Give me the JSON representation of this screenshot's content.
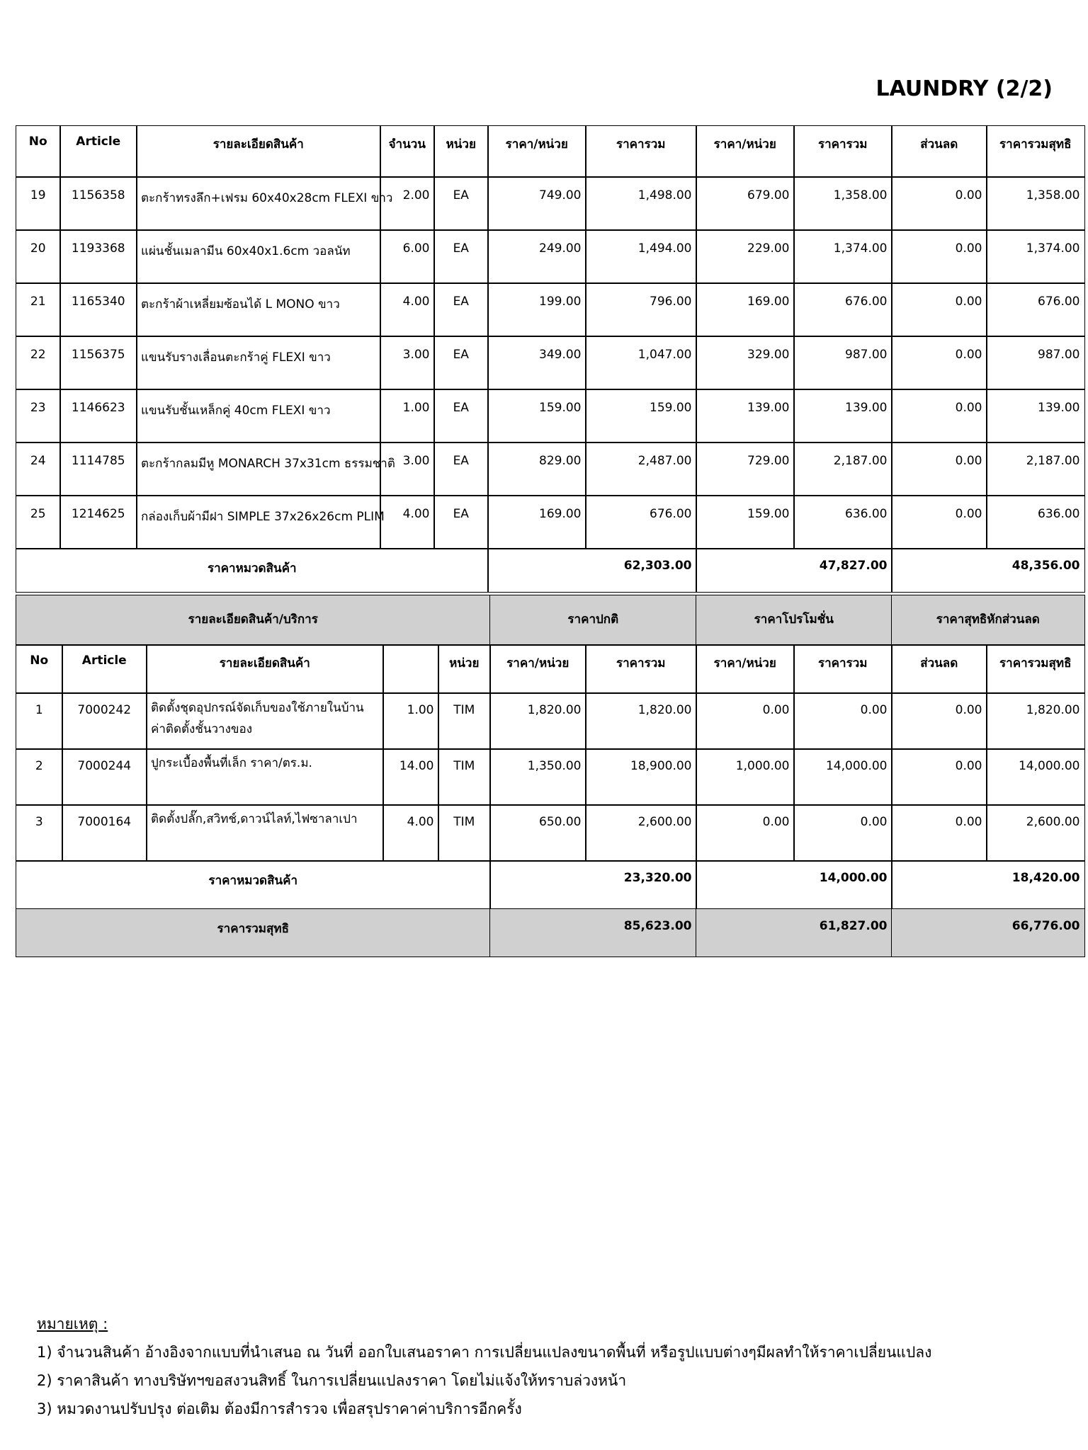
{
  "header": {
    "title": "LAUNDRY (2/2)"
  },
  "products": {
    "columns": [
      "No",
      "Article",
      "รายละเอียดสินค้า",
      "จำนวน",
      "หน่วย",
      "ราคา/หน่วย",
      "ราคารวม",
      "ราคา/หน่วย",
      "ราคารวม",
      "ส่วนลด",
      "ราคารวมสุทธิ"
    ],
    "rows": [
      [
        "19",
        "1156358",
        "ตะกร้าทรงลึก+เฟรม 60x40x28cm FLEXI ขาว",
        "2.00",
        "EA",
        "749.00",
        "1,498.00",
        "679.00",
        "1,358.00",
        "0.00",
        "1,358.00"
      ],
      [
        "20",
        "1193368",
        "แผ่นชั้นเมลามีน 60x40x1.6cm วอลนัท",
        "6.00",
        "EA",
        "249.00",
        "1,494.00",
        "229.00",
        "1,374.00",
        "0.00",
        "1,374.00"
      ],
      [
        "21",
        "1165340",
        "ตะกร้าผ้าเหลี่ยมซ้อนได้ L MONO ขาว",
        "4.00",
        "EA",
        "199.00",
        "796.00",
        "169.00",
        "676.00",
        "0.00",
        "676.00"
      ],
      [
        "22",
        "1156375",
        "แขนรับรางเลื่อนตะกร้าคู่ FLEXI ขาว",
        "3.00",
        "EA",
        "349.00",
        "1,047.00",
        "329.00",
        "987.00",
        "0.00",
        "987.00"
      ],
      [
        "23",
        "1146623",
        "แขนรับชั้นเหล็กคู่ 40cm FLEXI ขาว",
        "1.00",
        "EA",
        "159.00",
        "159.00",
        "139.00",
        "139.00",
        "0.00",
        "139.00"
      ],
      [
        "24",
        "1114785",
        "ตะกร้ากลมมีหู MONARCH 37x31cm ธรรมชาติ",
        "3.00",
        "EA",
        "829.00",
        "2,487.00",
        "729.00",
        "2,187.00",
        "0.00",
        "2,187.00"
      ],
      [
        "25",
        "1214625",
        "กล่องเก็บผ้ามีฝา SIMPLE 37x26x26cm PLIM",
        "4.00",
        "EA",
        "169.00",
        "676.00",
        "159.00",
        "636.00",
        "0.00",
        "636.00"
      ]
    ],
    "subtotal": {
      "label": "ราคาหมวดสินค้า",
      "values": [
        "62,303.00",
        "47,827.00",
        "48,356.00"
      ]
    }
  },
  "services": {
    "groups": [
      "รายละเอียดสินค้า/บริการ",
      "ราคาปกติ",
      "ราคาโปรโมชั่น",
      "ราคาสุทธิหักส่วนลด"
    ],
    "columns": [
      "No",
      "Article",
      "รายละเอียดสินค้า",
      null,
      "หน่วย",
      "ราคา/หน่วย",
      "ราคารวม",
      "ราคา/หน่วย",
      "ราคารวม",
      "ส่วนลด",
      "ราคารวมสุทธิ"
    ],
    "rows": [
      [
        "1",
        "7000242",
        [
          "ติดตั้งชุดอุปกรณ์จัดเก็บของใช้ภายในบ้าน",
          "ค่าติดตั้งชั้นวางของ"
        ],
        "1.00",
        "TIM",
        "1,820.00",
        "1,820.00",
        "0.00",
        "0.00",
        "0.00",
        "1,820.00"
      ],
      [
        "2",
        "7000244",
        "ปูกระเบื้องพื้นที่เล็ก ราคา/ตร.ม.",
        "14.00",
        "TIM",
        "1,350.00",
        "18,900.00",
        "1,000.00",
        "14,000.00",
        "0.00",
        "14,000.00"
      ],
      [
        "3",
        "7000164",
        "ติดตั้งปลั๊ก,สวิทช์,ดาวน์ไลท์,ไฟซาลาเปา",
        "4.00",
        "TIM",
        "650.00",
        "2,600.00",
        "0.00",
        "0.00",
        "0.00",
        "2,600.00"
      ]
    ],
    "subtotal": {
      "label": "ราคาหมวดสินค้า",
      "values": [
        "23,320.00",
        "14,000.00",
        "18,420.00"
      ]
    },
    "total": {
      "label": "ราคารวมสุทธิ",
      "values": [
        "85,623.00",
        "61,827.00",
        "66,776.00"
      ]
    }
  },
  "notes": {
    "heading": "หมายเหตุ :",
    "items": [
      "1) จำนวนสินค้า อ้างอิงจากแบบที่นำเสนอ ณ วันที่ ออกใบเสนอราคา การเปลี่ยนแปลงขนาดพื้นที่ หรือรูปแบบต่างๆมีผลทำให้ราคาเปลี่ยนแปลง",
      "2) ราคาสินค้า ทางบริษัทฯขอสงวนสิทธิ์ ในการเปลี่ยนแปลงราคา โดยไม่แจ้งให้ทราบล่วงหน้า",
      "3) หมวดงานปรับปรุง ต่อเติม ต้องมีการสำรวจ เพื่อสรุปราคาค่าบริการอีกครั้ง"
    ]
  }
}
